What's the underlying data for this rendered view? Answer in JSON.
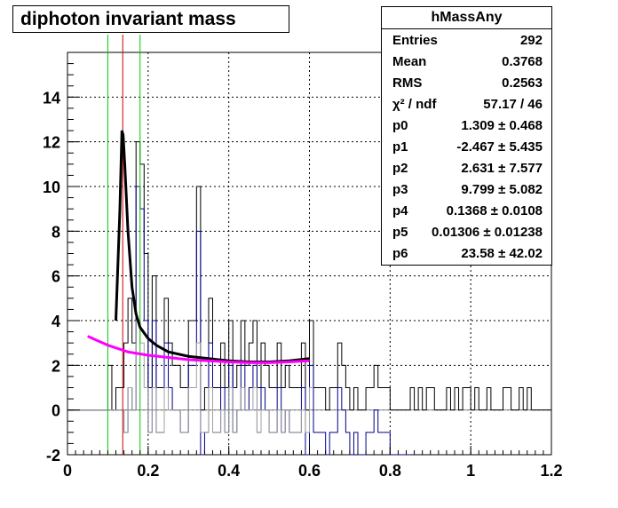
{
  "chart_data": {
    "type": "line",
    "title": "diphoton invariant mass",
    "xlim": [
      0,
      1.2
    ],
    "ylim": [
      -2,
      16
    ],
    "x_ticks": [
      0,
      0.2,
      0.4,
      0.6,
      0.8,
      1,
      1.2
    ],
    "x_tick_labels": [
      "0",
      "0.2",
      "0.4",
      "0.6",
      "0.8",
      "1",
      "1.2"
    ],
    "y_ticks": [
      -2,
      0,
      2,
      4,
      6,
      8,
      10,
      12,
      14
    ],
    "y_tick_labels": [
      "-2",
      "0",
      "2",
      "4",
      "6",
      "8",
      "10",
      "12",
      "14"
    ],
    "grid": true,
    "stats_box": {
      "name": "hMassAny",
      "placement": "top-right",
      "rows": [
        {
          "label": "Entries",
          "value": "292"
        },
        {
          "label": "Mean",
          "value": "0.3768"
        },
        {
          "label": "RMS",
          "value": "0.2563"
        },
        {
          "label": "χ² / ndf",
          "value": "57.17 / 46"
        },
        {
          "label": "p0",
          "value": "1.309 ± 0.468"
        },
        {
          "label": "p1",
          "value": "-2.467 ± 5.435"
        },
        {
          "label": "p2",
          "value": "2.631 ± 7.577"
        },
        {
          "label": "p3",
          "value": "9.799 ± 5.082"
        },
        {
          "label": "p4",
          "value": "0.1368 ± 0.0108"
        },
        {
          "label": "p5",
          "value": "0.01306 ± 0.01238"
        },
        {
          "label": "p6",
          "value": "23.58 ± 42.02"
        }
      ]
    },
    "bin_width": 0.01,
    "series": [
      {
        "kind": "histogram",
        "color": "#000000",
        "x_start": 0,
        "values": [
          0,
          0,
          0,
          0,
          0,
          0,
          0,
          0,
          0,
          0,
          2,
          0,
          1,
          1,
          3,
          5,
          3,
          12,
          11,
          7,
          1,
          6,
          1,
          1,
          5,
          3,
          2,
          2,
          1,
          1,
          4,
          4,
          10,
          0,
          1,
          5,
          1,
          1,
          3,
          1,
          4,
          1,
          2,
          4,
          2,
          3,
          4,
          1,
          3,
          2,
          1,
          1,
          3,
          1,
          2,
          1,
          1,
          1,
          3,
          0,
          4,
          1,
          1,
          1,
          0,
          1,
          1,
          3,
          2,
          1,
          0,
          1,
          0,
          0,
          1,
          1,
          2,
          1,
          1,
          1,
          0,
          0,
          0,
          0,
          0,
          1,
          0,
          1,
          0,
          1,
          1,
          0,
          0,
          0,
          1,
          0,
          1,
          0,
          1,
          1,
          0,
          1,
          0,
          0,
          1,
          0,
          0,
          0,
          1,
          1,
          0,
          0,
          1,
          0,
          1,
          0,
          0,
          0,
          0,
          0
        ]
      },
      {
        "kind": "histogram",
        "color": "#00008b",
        "x_start": 0,
        "values": [
          0,
          0,
          0,
          0,
          0,
          0,
          0,
          0,
          0,
          0,
          0,
          0,
          0,
          0,
          -1,
          1,
          0,
          10,
          9,
          4,
          -1,
          4,
          -1,
          -1,
          3,
          1,
          0,
          0,
          -1,
          -1,
          2,
          2,
          8,
          -2,
          -1,
          3,
          -1,
          -1,
          1,
          -1,
          2,
          -1,
          0,
          2,
          0,
          1,
          2,
          -1,
          1,
          0,
          -1,
          -1,
          1,
          -1,
          0,
          -1,
          -1,
          -1,
          1,
          -2,
          2,
          -1,
          -1,
          -1,
          -2,
          -1,
          -1,
          1,
          0,
          -1,
          -2,
          -1,
          -2,
          -2,
          -1,
          -1,
          0,
          -1,
          -1,
          -1,
          -2,
          -2,
          -2,
          -2,
          -2
        ]
      },
      {
        "kind": "histogram",
        "color": "#a0a0a0",
        "x_start": 0,
        "values": [
          0,
          0,
          0,
          0,
          0,
          0,
          0,
          0,
          0,
          0,
          0,
          0,
          0,
          0,
          -1,
          1,
          0,
          4,
          3,
          1,
          -1,
          1,
          -1,
          -1,
          1,
          0,
          0,
          0,
          -1,
          -1,
          1,
          1,
          3,
          -1,
          -1,
          1,
          -1,
          -1,
          0,
          -1,
          1,
          -1,
          0,
          1,
          0,
          0,
          1,
          -1,
          0,
          0,
          -1,
          -1,
          0,
          -1,
          0,
          -1,
          -1,
          -1,
          0,
          -1,
          1
        ]
      },
      {
        "kind": "curve",
        "color": "#000000",
        "x": [
          0.12,
          0.13,
          0.135,
          0.138,
          0.142,
          0.15,
          0.16,
          0.17,
          0.18,
          0.2,
          0.22,
          0.25,
          0.3,
          0.35,
          0.4,
          0.45,
          0.5,
          0.55,
          0.6
        ],
        "y": [
          4.0,
          9.0,
          12.5,
          12.3,
          11.0,
          8.0,
          5.5,
          4.3,
          3.7,
          3.2,
          2.9,
          2.6,
          2.4,
          2.3,
          2.2,
          2.15,
          2.15,
          2.2,
          2.3
        ]
      },
      {
        "kind": "curve",
        "color": "#ff00ff",
        "x": [
          0.05,
          0.1,
          0.15,
          0.2,
          0.25,
          0.3,
          0.35,
          0.4,
          0.45,
          0.5,
          0.55,
          0.6
        ],
        "y": [
          3.3,
          2.9,
          2.6,
          2.45,
          2.35,
          2.25,
          2.2,
          2.15,
          2.12,
          2.12,
          2.15,
          2.2
        ]
      }
    ],
    "vertical_markers": [
      {
        "x": 0.1,
        "color": "#00cc00"
      },
      {
        "x": 0.18,
        "color": "#00cc00"
      },
      {
        "x": 0.137,
        "color": "#cc0000"
      }
    ]
  }
}
